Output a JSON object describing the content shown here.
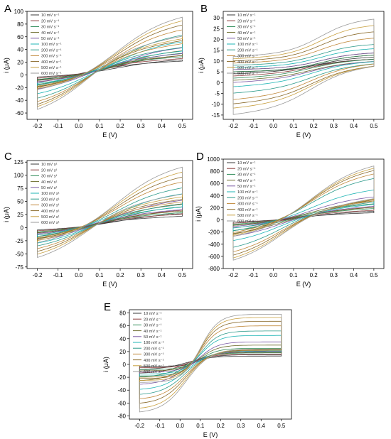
{
  "panels_info": {
    "colors": [
      "#3a3a3a",
      "#8a3b3b",
      "#2e8b57",
      "#6b6b2a",
      "#7b5aa6",
      "#1fb5b5",
      "#2c9a8a",
      "#c0883a",
      "#8a6a2a",
      "#c8a040",
      "#9a9a9a"
    ],
    "series_names_a": [
      "10 mV s⁻¹",
      "20 mV s⁻¹",
      "30 mV s⁻¹",
      "40 mV s⁻¹",
      "50 mV s⁻¹",
      "100 mV s⁻¹",
      "200 mV s⁻¹",
      "300 mV s⁻¹",
      "400 mV s⁻¹",
      "500 mV s⁻¹",
      "600 mV s⁻¹"
    ],
    "series_names_c": [
      "10 mV s¹",
      "20 mV s¹",
      "30 mV s¹",
      "40 mV s¹",
      "50 mV s¹",
      "100 mV s¹",
      "200 mV s¹",
      "300 mV s¹",
      "400 mV s¹",
      "500 mV s¹",
      "600 mV s¹"
    ]
  },
  "chart_data": [
    {
      "type": "line",
      "label": "A",
      "xlabel": "E (V)",
      "ylabel": "i (μA)",
      "xlim": [
        -0.25,
        0.55
      ],
      "ylim": [
        -70,
        100
      ],
      "xticks": [
        -0.2,
        -0.1,
        0.0,
        0.1,
        0.2,
        0.3,
        0.4,
        0.5
      ],
      "xtick_labels": [
        "-0.2",
        "-0.1",
        "0.0",
        "0.1",
        "0.2",
        "0.3",
        "0.4",
        "0.5"
      ],
      "yticks": [
        -60,
        -40,
        -20,
        0,
        20,
        40,
        60,
        80,
        100
      ],
      "ytick_labels": [
        "-60",
        "-40",
        "-20",
        "0",
        "20",
        "40",
        "60",
        "80",
        "100"
      ],
      "series": [
        {
          "name": "10 mV s⁻¹",
          "forward_end": 25,
          "reverse_end": 22,
          "reverse_start": -10,
          "forward_start": -4
        },
        {
          "name": "20 mV s⁻¹",
          "forward_end": 32,
          "reverse_end": 26,
          "reverse_start": -14,
          "forward_start": -6
        },
        {
          "name": "30 mV s⁻¹",
          "forward_end": 36,
          "reverse_end": 29,
          "reverse_start": -18,
          "forward_start": -8
        },
        {
          "name": "40 mV s⁻¹",
          "forward_end": 40,
          "reverse_end": 31,
          "reverse_start": -22,
          "forward_start": -10
        },
        {
          "name": "50 mV s⁻¹",
          "forward_end": 45,
          "reverse_end": 34,
          "reverse_start": -26,
          "forward_start": -12
        },
        {
          "name": "100 mV s⁻¹",
          "forward_end": 55,
          "reverse_end": 38,
          "reverse_start": -34,
          "forward_start": -15
        },
        {
          "name": "200 mV s⁻¹",
          "forward_end": 66,
          "reverse_end": 44,
          "reverse_start": -42,
          "forward_start": -18
        },
        {
          "name": "300 mV s⁻¹",
          "forward_end": 75,
          "reverse_end": 50,
          "reverse_start": -48,
          "forward_start": -20
        },
        {
          "name": "400 mV s⁻¹",
          "forward_end": 83,
          "reverse_end": 55,
          "reverse_start": -53,
          "forward_start": -22
        },
        {
          "name": "500 mV s⁻¹",
          "forward_end": 90,
          "reverse_end": 58,
          "reverse_start": -57,
          "forward_start": -24
        },
        {
          "name": "600 mV s⁻¹",
          "forward_end": 96,
          "reverse_end": 62,
          "reverse_start": -62,
          "forward_start": -26
        }
      ]
    },
    {
      "type": "line",
      "label": "B",
      "xlabel": "E (V)",
      "ylabel": "i (μA)",
      "xlim": [
        -0.25,
        0.55
      ],
      "ylim": [
        -17,
        33
      ],
      "xticks": [
        -0.2,
        -0.1,
        0.0,
        0.1,
        0.2,
        0.3,
        0.4,
        0.5
      ],
      "xtick_labels": [
        "-0.2",
        "-0.1",
        "0.0",
        "0.1",
        "0.2",
        "0.3",
        "0.4",
        "0.5"
      ],
      "yticks": [
        -15,
        -10,
        -5,
        0,
        5,
        10,
        15,
        20,
        25,
        30
      ],
      "ytick_labels": [
        "-15",
        "-10",
        "-5",
        "0",
        "5",
        "10",
        "15",
        "20",
        "25",
        "30"
      ],
      "series": [
        {
          "name": "10 mV s⁻¹",
          "upper_start": 5,
          "upper_end": 12,
          "lower_start": 4,
          "lower_end": 11
        },
        {
          "name": "20 mV s⁻¹",
          "upper_start": 5,
          "upper_end": 13,
          "lower_start": 3,
          "lower_end": 11
        },
        {
          "name": "30 mV s⁻¹",
          "upper_start": 5,
          "upper_end": 13,
          "lower_start": 2,
          "lower_end": 11
        },
        {
          "name": "40 mV s⁻¹",
          "upper_start": 6,
          "upper_end": 14,
          "lower_start": 1,
          "lower_end": 10
        },
        {
          "name": "50 mV s⁻¹",
          "upper_start": 6,
          "upper_end": 14,
          "lower_start": 0,
          "lower_end": 10
        },
        {
          "name": "100 mV s⁻¹",
          "upper_start": 7,
          "upper_end": 16,
          "lower_start": -2,
          "lower_end": 10
        },
        {
          "name": "200 mV s⁻¹",
          "upper_start": 8,
          "upper_end": 18,
          "lower_start": -5,
          "lower_end": 9
        },
        {
          "name": "300 mV s⁻¹",
          "upper_start": 9,
          "upper_end": 21,
          "lower_start": -8,
          "lower_end": 9
        },
        {
          "name": "400 mV s⁻¹",
          "upper_start": 10,
          "upper_end": 24,
          "lower_start": -10,
          "lower_end": 8
        },
        {
          "name": "500 mV s⁻¹",
          "upper_start": 11,
          "upper_end": 27,
          "lower_start": -12,
          "lower_end": 8
        },
        {
          "name": "600 mV s⁻¹",
          "upper_start": 12,
          "upper_end": 30,
          "lower_start": -15,
          "lower_end": 8
        }
      ]
    },
    {
      "type": "line",
      "label": "C",
      "xlabel": "E (V)",
      "ylabel": "i (μA)",
      "xlim": [
        -0.25,
        0.55
      ],
      "ylim": [
        -78,
        128
      ],
      "xticks": [
        -0.2,
        -0.1,
        0.0,
        0.1,
        0.2,
        0.3,
        0.4,
        0.5
      ],
      "xtick_labels": [
        "-0.2",
        "-0.1",
        "0.0",
        "0.1",
        "0.2",
        "0.3",
        "0.4",
        "0.5"
      ],
      "yticks": [
        -75,
        -50,
        -25,
        0,
        25,
        50,
        75,
        100,
        125
      ],
      "ytick_labels": [
        "-75",
        "-50",
        "-25",
        "0",
        "25",
        "50",
        "75",
        "100",
        "125"
      ],
      "series": [
        {
          "name": "10 mV s¹",
          "forward_end": 28,
          "reverse_end": 22,
          "reverse_start": -12,
          "forward_start": -5
        },
        {
          "name": "20 mV s¹",
          "forward_end": 35,
          "reverse_end": 26,
          "reverse_start": -16,
          "forward_start": -7
        },
        {
          "name": "30 mV s¹",
          "forward_end": 42,
          "reverse_end": 29,
          "reverse_start": -20,
          "forward_start": -9
        },
        {
          "name": "40 mV s¹",
          "forward_end": 48,
          "reverse_end": 32,
          "reverse_start": -24,
          "forward_start": -11
        },
        {
          "name": "50 mV s¹",
          "forward_end": 55,
          "reverse_end": 35,
          "reverse_start": -28,
          "forward_start": -13
        },
        {
          "name": "100 mV s¹",
          "forward_end": 68,
          "reverse_end": 40,
          "reverse_start": -34,
          "forward_start": -16
        },
        {
          "name": "200 mV s¹",
          "forward_end": 80,
          "reverse_end": 45,
          "reverse_start": -40,
          "forward_start": -19
        },
        {
          "name": "300 mV s¹",
          "forward_end": 92,
          "reverse_end": 50,
          "reverse_start": -46,
          "forward_start": -22
        },
        {
          "name": "400 mV s¹",
          "forward_end": 102,
          "reverse_end": 55,
          "reverse_start": -52,
          "forward_start": -25
        },
        {
          "name": "500 mV s¹",
          "forward_end": 112,
          "reverse_end": 60,
          "reverse_start": -58,
          "forward_start": -28
        },
        {
          "name": "600 mV s¹",
          "forward_end": 122,
          "reverse_end": 65,
          "reverse_start": -65,
          "forward_start": -32
        }
      ]
    },
    {
      "type": "line",
      "label": "D",
      "xlabel": "E (V)",
      "ylabel": "i (μA)",
      "xlim": [
        -0.25,
        0.55
      ],
      "ylim": [
        -800,
        1000
      ],
      "xticks": [
        -0.2,
        -0.1,
        0.0,
        0.1,
        0.2,
        0.3,
        0.4,
        0.5
      ],
      "xtick_labels": [
        "-0.2",
        "-0.1",
        "0.0",
        "0.1",
        "0.2",
        "0.3",
        "0.4",
        "0.5"
      ],
      "yticks": [
        -800,
        -600,
        -400,
        -200,
        0,
        200,
        400,
        600,
        800,
        1000
      ],
      "ytick_labels": [
        "-800",
        "-600",
        "-400",
        "-200",
        "0",
        "200",
        "400",
        "600",
        "800",
        "1000"
      ],
      "series": [
        {
          "name": "10 mV s⁻¹",
          "forward_end": 150,
          "reverse_end": 120,
          "reverse_start": -100,
          "forward_start": -40
        },
        {
          "name": "20 mV s⁻¹",
          "forward_end": 220,
          "reverse_end": 160,
          "reverse_start": -150,
          "forward_start": -60
        },
        {
          "name": "30 mV s⁻¹",
          "forward_end": 280,
          "reverse_end": 190,
          "reverse_start": -200,
          "forward_start": -80
        },
        {
          "name": "40 mV s⁻¹",
          "forward_end": 330,
          "reverse_end": 210,
          "reverse_start": -250,
          "forward_start": -100
        },
        {
          "name": "50 mV s⁻¹",
          "forward_end": 400,
          "reverse_end": 230,
          "reverse_start": -300,
          "forward_start": -120
        },
        {
          "name": "100 mV s⁻¹",
          "forward_end": 520,
          "reverse_end": 260,
          "reverse_start": -380,
          "forward_start": -150
        },
        {
          "name": "200 mV s⁻¹",
          "forward_end": 720,
          "reverse_end": 300,
          "reverse_start": -500,
          "forward_start": -200
        },
        {
          "name": "300 mV s⁻¹",
          "forward_end": 800,
          "reverse_end": 320,
          "reverse_start": -580,
          "forward_start": -230
        },
        {
          "name": "400 mV s⁻¹",
          "forward_end": 860,
          "reverse_end": 340,
          "reverse_start": -640,
          "forward_start": -260
        },
        {
          "name": "500 mV s⁻¹",
          "forward_end": 900,
          "reverse_end": 350,
          "reverse_start": -690,
          "forward_start": -280
        },
        {
          "name": "600 mV s⁻¹",
          "forward_end": 940,
          "reverse_end": 360,
          "reverse_start": -730,
          "forward_start": -300
        }
      ]
    },
    {
      "type": "line",
      "label": "E",
      "xlabel": "E (V)",
      "ylabel": "i (μA)",
      "xlim": [
        -0.25,
        0.55
      ],
      "ylim": [
        -85,
        85
      ],
      "xticks": [
        -0.2,
        -0.1,
        0.0,
        0.1,
        0.2,
        0.3,
        0.4,
        0.5
      ],
      "xtick_labels": [
        "-0.2",
        "-0.1",
        "0.0",
        "0.1",
        "0.2",
        "0.3",
        "0.4",
        "0.5"
      ],
      "yticks": [
        -80,
        -60,
        -40,
        -20,
        0,
        20,
        40,
        60,
        80
      ],
      "ytick_labels": [
        "-80",
        "-60",
        "-40",
        "-20",
        "0",
        "20",
        "40",
        "60",
        "80"
      ],
      "series": [
        {
          "name": "10 mV s⁻¹",
          "plateau": 15,
          "reverse_end": 13,
          "reverse_start": -8,
          "forward_start": -3
        },
        {
          "name": "20 mV s⁻¹",
          "plateau": 20,
          "reverse_end": 16,
          "reverse_start": -14,
          "forward_start": -5
        },
        {
          "name": "30 mV s⁻¹",
          "plateau": 25,
          "reverse_end": 18,
          "reverse_start": -20,
          "forward_start": -8
        },
        {
          "name": "40 mV s⁻¹",
          "plateau": 30,
          "reverse_end": 19,
          "reverse_start": -26,
          "forward_start": -10
        },
        {
          "name": "50 mV s⁻¹",
          "plateau": 35,
          "reverse_end": 20,
          "reverse_start": -32,
          "forward_start": -12
        },
        {
          "name": "100 mV s⁻¹",
          "plateau": 45,
          "reverse_end": 21,
          "reverse_start": -40,
          "forward_start": -15
        },
        {
          "name": "200 mV s⁻¹",
          "plateau": 52,
          "reverse_end": 22,
          "reverse_start": -48,
          "forward_start": -18
        },
        {
          "name": "300 mV s⁻¹",
          "plateau": 60,
          "reverse_end": 22,
          "reverse_start": -55,
          "forward_start": -20
        },
        {
          "name": "400 mV s⁻¹",
          "plateau": 67,
          "reverse_end": 23,
          "reverse_start": -62,
          "forward_start": -22
        },
        {
          "name": "500 mV s⁻¹",
          "plateau": 73,
          "reverse_end": 24,
          "reverse_start": -70,
          "forward_start": -25
        },
        {
          "name": "600 mV s⁻¹",
          "plateau": 78,
          "reverse_end": 24,
          "reverse_start": -76,
          "forward_start": -28
        }
      ]
    }
  ]
}
